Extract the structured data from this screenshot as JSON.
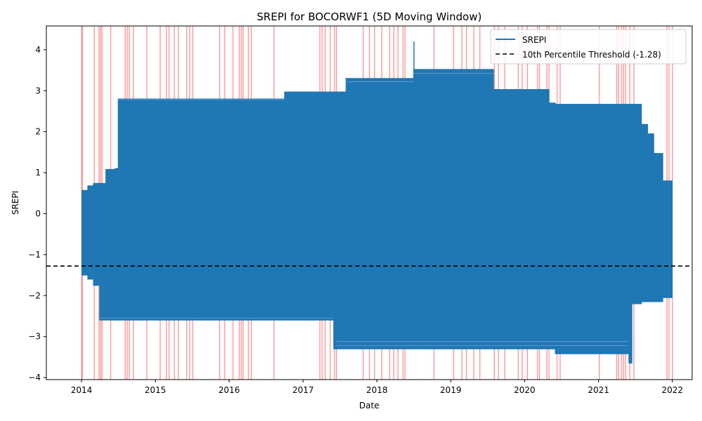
{
  "chart_data": {
    "type": "line",
    "title": "SREPI for BOCORWF1 (5D Moving Window)",
    "xlabel": "Date",
    "ylabel": "SREPI",
    "xlim": [
      "2013-07-11",
      "2022-04-09"
    ],
    "ylim": [
      -4.05,
      4.58
    ],
    "grid": false,
    "legend_position": "top-right",
    "x_ticks": [
      {
        "label": "2014",
        "date": "2014-01-01"
      },
      {
        "label": "2015",
        "date": "2015-01-01"
      },
      {
        "label": "2016",
        "date": "2016-01-01"
      },
      {
        "label": "2017",
        "date": "2017-01-01"
      },
      {
        "label": "2018",
        "date": "2018-01-01"
      },
      {
        "label": "2019",
        "date": "2019-01-01"
      },
      {
        "label": "2020",
        "date": "2020-01-01"
      },
      {
        "label": "2021",
        "date": "2021-01-01"
      },
      {
        "label": "2022",
        "date": "2022-01-01"
      }
    ],
    "y_ticks": [
      {
        "label": "−4",
        "value": -4
      },
      {
        "label": "−3",
        "value": -3
      },
      {
        "label": "−2",
        "value": -2
      },
      {
        "label": "−1",
        "value": -1
      },
      {
        "label": "0",
        "value": 0
      },
      {
        "label": "1",
        "value": 1
      },
      {
        "label": "2",
        "value": 2
      },
      {
        "label": "3",
        "value": 3
      },
      {
        "label": "4",
        "value": 4
      }
    ],
    "series": [
      {
        "name": "SREPI",
        "color": "#1f77b4",
        "envelope": [
          {
            "date": "2014-01-03",
            "min": -1.5,
            "max": 0.57
          },
          {
            "date": "2014-02-01",
            "min": -1.6,
            "max": 0.68
          },
          {
            "date": "2014-03-01",
            "min": -1.75,
            "max": 0.74
          },
          {
            "date": "2014-04-01",
            "min": -2.6,
            "max": 0.74
          },
          {
            "date": "2014-05-01",
            "min": -2.6,
            "max": 1.08
          },
          {
            "date": "2014-06-15",
            "min": -2.6,
            "max": 1.1
          },
          {
            "date": "2014-07-01",
            "min": -2.6,
            "max": 2.8
          },
          {
            "date": "2015-06-01",
            "min": -2.6,
            "max": 2.8
          },
          {
            "date": "2016-01-01",
            "min": -2.6,
            "max": 2.8
          },
          {
            "date": "2016-10-01",
            "min": -2.6,
            "max": 2.97
          },
          {
            "date": "2017-06-01",
            "min": -3.3,
            "max": 2.97
          },
          {
            "date": "2017-08-01",
            "min": -3.3,
            "max": 3.3
          },
          {
            "date": "2018-07-01",
            "min": -3.3,
            "max": 3.52
          },
          {
            "date": "2019-08-01",
            "min": -3.3,
            "max": 3.03
          },
          {
            "date": "2020-05-01",
            "min": -3.3,
            "max": 2.7
          },
          {
            "date": "2020-06-01",
            "min": -3.42,
            "max": 2.67
          },
          {
            "date": "2021-05-31",
            "min": -3.65,
            "max": 2.67
          },
          {
            "date": "2021-06-15",
            "min": -2.2,
            "max": 2.67
          },
          {
            "date": "2021-08-01",
            "min": -2.15,
            "max": 2.18
          },
          {
            "date": "2021-09-01",
            "min": -2.15,
            "max": 1.95
          },
          {
            "date": "2021-10-01",
            "min": -2.15,
            "max": 1.47
          },
          {
            "date": "2021-11-15",
            "min": -2.05,
            "max": 0.8
          },
          {
            "date": "2021-12-31",
            "min": -1.8,
            "max": 0.5
          }
        ],
        "spike": {
          "date": "2018-07-03",
          "max": 4.2
        }
      }
    ],
    "threshold": {
      "name": "10th Percentile Threshold (-1.28)",
      "value": -1.28,
      "color": "#000000",
      "style": "dashed"
    },
    "highlight_color": "#ff0000",
    "highlight_dates": [
      "2014-01-02",
      "2014-01-05",
      "2014-03-05",
      "2014-03-28",
      "2014-04-05",
      "2014-04-12",
      "2014-05-25",
      "2014-08-05",
      "2014-08-15",
      "2014-08-25",
      "2014-09-15",
      "2014-11-20",
      "2015-01-25",
      "2015-02-25",
      "2015-03-10",
      "2015-04-05",
      "2015-04-25",
      "2015-06-05",
      "2015-06-20",
      "2015-07-05",
      "2015-11-15",
      "2015-12-10",
      "2016-01-20",
      "2016-02-20",
      "2016-03-01",
      "2016-03-10",
      "2016-04-05",
      "2016-04-20",
      "2016-08-10",
      "2017-03-25",
      "2017-04-05",
      "2017-04-20",
      "2017-05-15",
      "2017-06-05",
      "2017-06-15",
      "2017-10-25",
      "2017-11-25",
      "2017-12-20",
      "2018-01-25",
      "2018-03-05",
      "2018-03-25",
      "2018-04-15",
      "2018-05-10",
      "2018-05-20",
      "2018-10-10",
      "2019-01-15",
      "2019-02-25",
      "2019-03-20",
      "2019-04-25",
      "2019-05-25",
      "2019-08-05",
      "2019-08-25",
      "2019-09-25",
      "2019-12-01",
      "2019-12-20",
      "2020-01-15",
      "2020-03-05",
      "2020-03-15",
      "2020-04-20",
      "2020-05-01",
      "2020-06-10",
      "2020-06-25",
      "2021-01-05",
      "2021-04-01",
      "2021-04-10",
      "2021-04-25",
      "2021-05-05",
      "2021-05-15",
      "2021-06-05",
      "2021-06-25",
      "2021-12-05",
      "2021-12-15",
      "2022-01-01"
    ]
  }
}
